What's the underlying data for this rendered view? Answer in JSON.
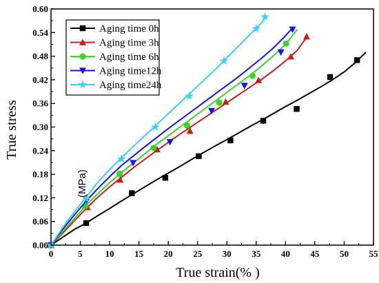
{
  "chart_data": {
    "type": "line",
    "xlabel": "True strain(% )",
    "ylabel": "True stress",
    "annotation": "(MPa)",
    "xlim": [
      0,
      55
    ],
    "ylim": [
      0,
      0.6
    ],
    "xticks": [
      "0",
      "5",
      "10",
      "15",
      "20",
      "25",
      "30",
      "35",
      "40",
      "45",
      "50",
      "55"
    ],
    "yticks": [
      "0.00",
      "0.06",
      "0.12",
      "0.18",
      "0.24",
      "0.30",
      "0.36",
      "0.42",
      "0.48",
      "0.54",
      "0.60"
    ],
    "legend_position": "top-left",
    "series": [
      {
        "name": "Aging time  0h",
        "color": "#000000",
        "marker": "square",
        "x": [
          0,
          2,
          4,
          6,
          8,
          10,
          12,
          14,
          16,
          18,
          20,
          22,
          24,
          26,
          28,
          30,
          32,
          34,
          36,
          38,
          40,
          42,
          44,
          46,
          48,
          50,
          52,
          53.7
        ],
        "y": [
          0,
          0.02,
          0.04,
          0.056,
          0.075,
          0.093,
          0.112,
          0.13,
          0.148,
          0.166,
          0.183,
          0.2,
          0.218,
          0.235,
          0.252,
          0.268,
          0.285,
          0.302,
          0.318,
          0.335,
          0.352,
          0.368,
          0.385,
          0.402,
          0.42,
          0.44,
          0.465,
          0.49
        ],
        "markers_x": [
          0,
          6,
          13.8,
          19.5,
          25.2,
          30.6,
          36.2,
          41.9,
          47.6,
          52.2
        ],
        "markers_y": [
          0,
          0.056,
          0.132,
          0.171,
          0.226,
          0.266,
          0.316,
          0.346,
          0.427,
          0.47
        ]
      },
      {
        "name": "Aging time  3h",
        "color": "#c0221a",
        "marker": "triangle-up",
        "x": [
          0,
          2,
          4,
          6,
          8,
          10,
          12,
          14,
          16,
          18,
          20,
          22,
          24,
          26,
          28,
          30,
          32,
          34,
          36,
          38,
          40,
          42,
          43.8
        ],
        "y": [
          0,
          0.03,
          0.062,
          0.093,
          0.122,
          0.148,
          0.172,
          0.196,
          0.218,
          0.24,
          0.261,
          0.282,
          0.302,
          0.322,
          0.342,
          0.362,
          0.382,
          0.402,
          0.422,
          0.444,
          0.468,
          0.495,
          0.532
        ],
        "markers_x": [
          0,
          6.2,
          11.8,
          18.1,
          23.7,
          29.8,
          35.4,
          40.9,
          43.6
        ],
        "markers_y": [
          0,
          0.096,
          0.166,
          0.243,
          0.29,
          0.364,
          0.419,
          0.479,
          0.53
        ]
      },
      {
        "name": "Aging time  6h",
        "color": "#3fd12b",
        "marker": "circle",
        "x": [
          0,
          2,
          4,
          6,
          8,
          10,
          12,
          14,
          16,
          18,
          20,
          22,
          24,
          26,
          28,
          30,
          32,
          34,
          36,
          38,
          40,
          42
        ],
        "y": [
          0,
          0.034,
          0.068,
          0.101,
          0.131,
          0.159,
          0.184,
          0.208,
          0.232,
          0.256,
          0.278,
          0.3,
          0.322,
          0.344,
          0.366,
          0.388,
          0.41,
          0.432,
          0.456,
          0.482,
          0.51,
          0.548
        ],
        "markers_x": [
          0,
          5.8,
          11.7,
          17.5,
          23.2,
          28.7,
          34.4,
          40.1
        ],
        "markers_y": [
          0,
          0.099,
          0.181,
          0.247,
          0.304,
          0.362,
          0.43,
          0.512
        ]
      },
      {
        "name": "Aging time12h",
        "color": "#1414e6",
        "marker": "triangle-down",
        "x": [
          0,
          2,
          4,
          6,
          8,
          10,
          12,
          14,
          16,
          18,
          20,
          22,
          24,
          26,
          28,
          30,
          32,
          34,
          36,
          38,
          40,
          41.2
        ],
        "y": [
          0,
          0.04,
          0.077,
          0.112,
          0.144,
          0.174,
          0.202,
          0.226,
          0.25,
          0.273,
          0.296,
          0.318,
          0.34,
          0.362,
          0.384,
          0.406,
          0.428,
          0.452,
          0.476,
          0.502,
          0.532,
          0.552
        ],
        "markers_x": [
          0,
          6.1,
          14,
          20.3,
          27.4,
          33,
          39.2,
          41.2
        ],
        "markers_y": [
          0,
          0.114,
          0.209,
          0.262,
          0.341,
          0.405,
          0.49,
          0.548
        ]
      },
      {
        "name": "Aging time24h",
        "color": "#37d3ec",
        "marker": "star",
        "x": [
          0,
          2,
          4,
          6,
          8,
          10,
          12,
          14,
          16,
          18,
          20,
          22,
          24,
          26,
          28,
          30,
          32,
          34,
          36,
          36.8
        ],
        "y": [
          0,
          0.045,
          0.085,
          0.122,
          0.16,
          0.192,
          0.222,
          0.25,
          0.278,
          0.306,
          0.334,
          0.362,
          0.39,
          0.418,
          0.446,
          0.476,
          0.506,
          0.536,
          0.566,
          0.583
        ],
        "markers_x": [
          0,
          6,
          12,
          17.8,
          23.6,
          29.5,
          35,
          36.5
        ],
        "markers_y": [
          0,
          0.117,
          0.219,
          0.3,
          0.379,
          0.468,
          0.55,
          0.58
        ]
      }
    ]
  }
}
